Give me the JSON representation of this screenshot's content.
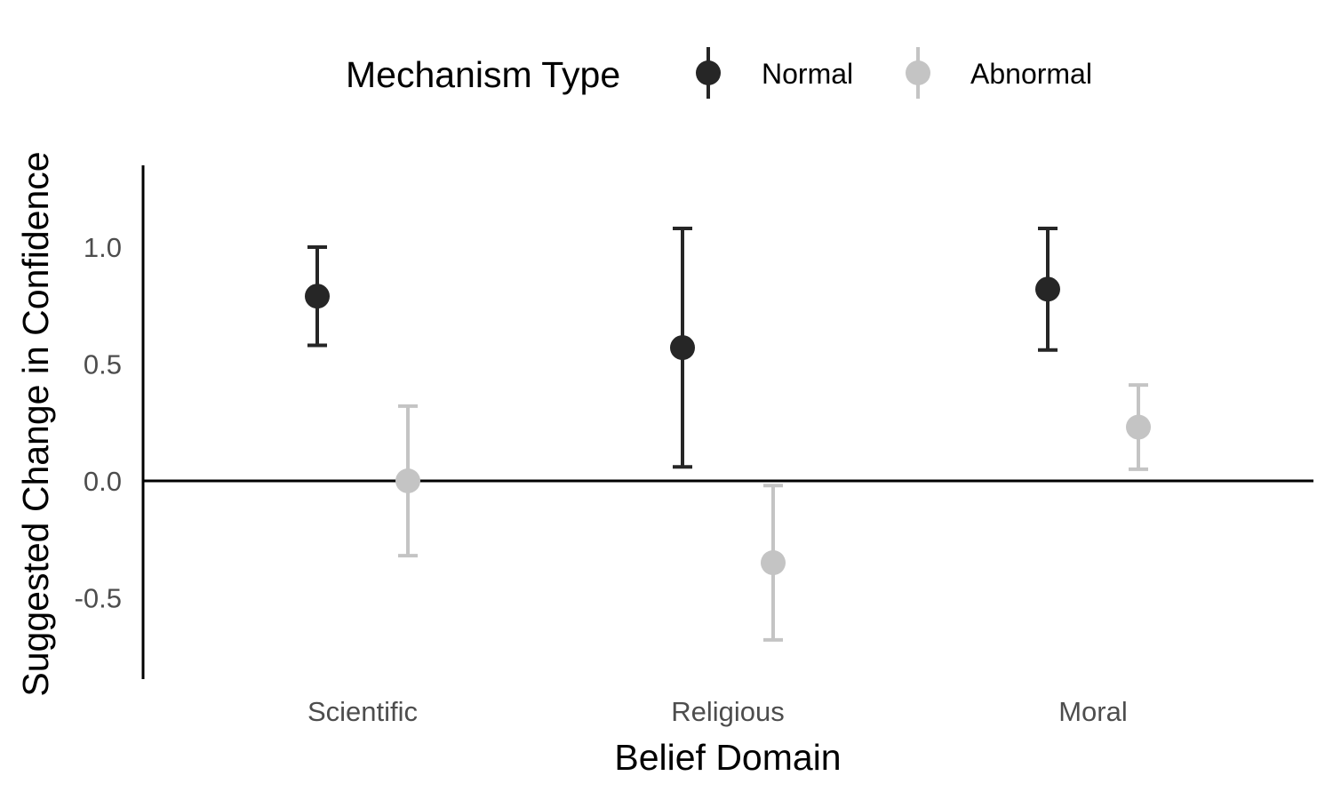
{
  "chart_data": {
    "type": "scatter",
    "subtype": "point-errorbar",
    "xlabel": "Belief Domain",
    "ylabel": "Suggested Change in Confidence",
    "categories": [
      "Scientific",
      "Religious",
      "Moral"
    ],
    "ylim": [
      -0.85,
      1.35
    ],
    "yticks": [
      -0.5,
      0.0,
      0.5,
      1.0
    ],
    "ytick_labels": [
      "-0.5",
      "0.0",
      "0.5",
      "1.0"
    ],
    "reference_line_y": 0,
    "grid": false,
    "legend": {
      "title": "Mechanism Type",
      "position": "top"
    },
    "series": [
      {
        "name": "Normal",
        "color": "#262626",
        "values": [
          0.79,
          0.57,
          0.82
        ],
        "lower": [
          0.58,
          0.06,
          0.56
        ],
        "upper": [
          1.0,
          1.08,
          1.08
        ]
      },
      {
        "name": "Abnormal",
        "color": "#c4c4c4",
        "values": [
          0.0,
          -0.35,
          0.23
        ],
        "lower": [
          -0.32,
          -0.68,
          0.05
        ],
        "upper": [
          0.32,
          -0.02,
          0.41
        ]
      }
    ]
  }
}
